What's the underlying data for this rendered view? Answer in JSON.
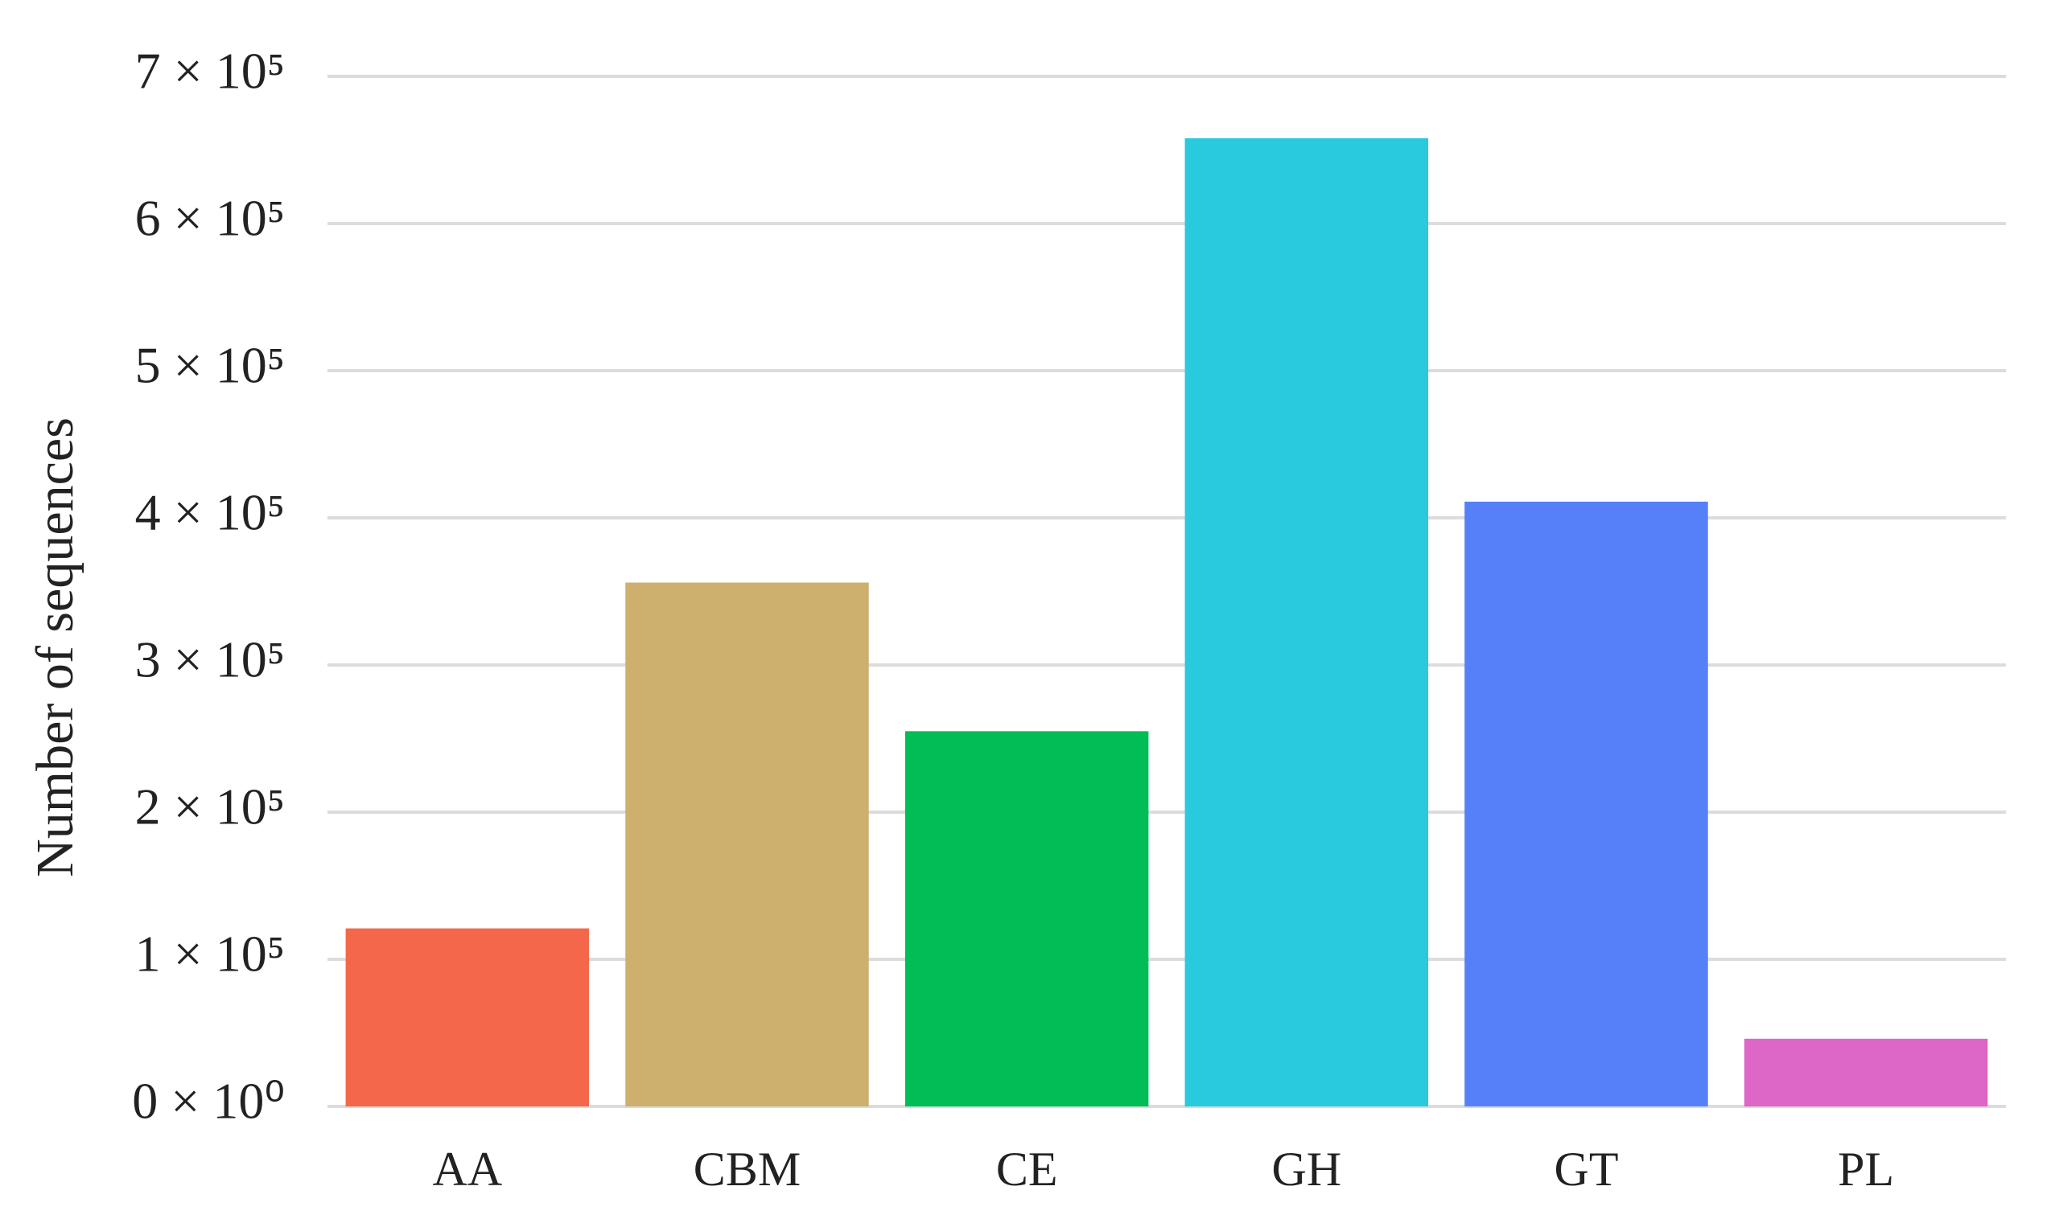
{
  "chart_data": {
    "type": "bar",
    "y_label": "Number of sequences",
    "categories": [
      "AA",
      "CBM",
      "CE",
      "GH",
      "GT",
      "PL"
    ],
    "values": [
      121000,
      356000,
      255000,
      658000,
      411000,
      46000
    ],
    "colors": [
      "#f4674a",
      "#cdb06d",
      "#00bd56",
      "#29cadd",
      "#5580f7",
      "#dc67c6"
    ],
    "ylim": [
      0,
      700000
    ],
    "yticks": [
      {
        "value": 0,
        "label": "0 × 10⁰"
      },
      {
        "value": 100000,
        "label": "1 × 10⁵"
      },
      {
        "value": 200000,
        "label": "2 × 10⁵"
      },
      {
        "value": 300000,
        "label": "3 × 10⁵"
      },
      {
        "value": 400000,
        "label": "4 × 10⁵"
      },
      {
        "value": 500000,
        "label": "5 × 10⁵"
      },
      {
        "value": 600000,
        "label": "6 × 10⁵"
      },
      {
        "value": 700000,
        "label": "7 × 10⁵"
      }
    ],
    "grid": true
  }
}
